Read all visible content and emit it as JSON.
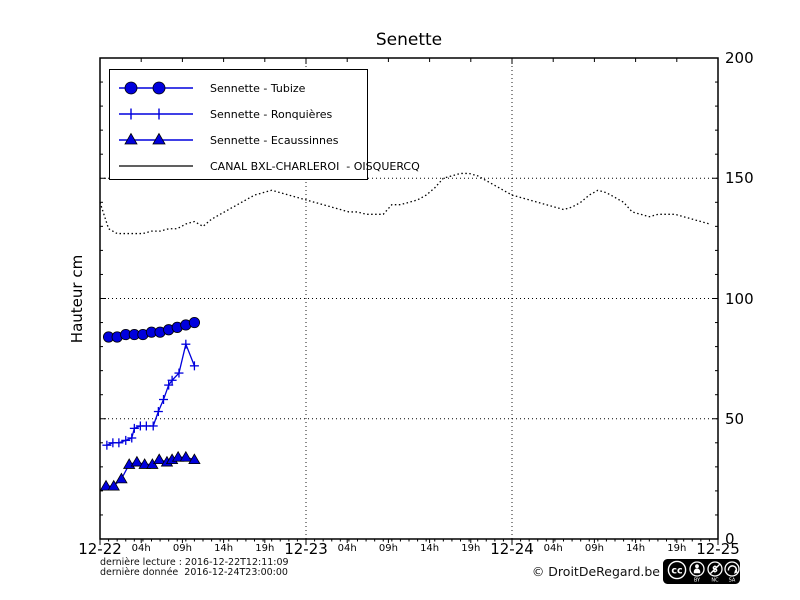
{
  "title": "Senette",
  "y_axis_label": "Hauteur cm",
  "footer": {
    "last_reading": "dernière lecture : 2016-12-22T12:11:09",
    "last_data": "dernière donnée  2016-12-24T23:00:00",
    "copyright": "© DroitDeRegard.be",
    "license": {
      "name": "CC BY-NC-SA",
      "parts": [
        "BY",
        "NC",
        "SA"
      ]
    }
  },
  "colors": {
    "series_blue": "#0000dd",
    "canal_black": "#000000",
    "grid": "#000000",
    "background": "#ffffff"
  },
  "chart_data": {
    "type": "line",
    "title": "Senette",
    "ylabel": "Hauteur cm",
    "x_unit": "hours since 2016-12-22 00:00",
    "xlim": [
      0,
      72
    ],
    "ylim": [
      0,
      200
    ],
    "yticks": [
      0,
      50,
      100,
      150,
      200
    ],
    "grid": "dotted",
    "legend_position": "upper left",
    "day_ticks": [
      {
        "h": 0,
        "label": "12-22"
      },
      {
        "h": 24,
        "label": "12-23"
      },
      {
        "h": 48,
        "label": "12-24"
      },
      {
        "h": 72,
        "label": "12-25"
      }
    ],
    "hour_ticks": [
      {
        "h": 4.8,
        "label": "04h"
      },
      {
        "h": 9.6,
        "label": "09h"
      },
      {
        "h": 14.4,
        "label": "14h"
      },
      {
        "h": 19.2,
        "label": "19h"
      },
      {
        "h": 28.8,
        "label": "04h"
      },
      {
        "h": 33.6,
        "label": "09h"
      },
      {
        "h": 38.4,
        "label": "14h"
      },
      {
        "h": 43.2,
        "label": "19h"
      },
      {
        "h": 52.8,
        "label": "04h"
      },
      {
        "h": 57.6,
        "label": "09h"
      },
      {
        "h": 62.4,
        "label": "14h"
      },
      {
        "h": 67.2,
        "label": "19h"
      }
    ],
    "series": [
      {
        "name": "Sennette - Tubize",
        "marker": "circle",
        "color": "#0000dd",
        "x": [
          1,
          2,
          3,
          4,
          5,
          6,
          7,
          8,
          9,
          10,
          11
        ],
        "y": [
          84,
          84,
          85,
          85,
          85,
          86,
          86,
          87,
          88,
          89,
          90
        ]
      },
      {
        "name": "Sennette - Ronquières",
        "marker": "plus",
        "color": "#0000dd",
        "x": [
          0.8,
          1.5,
          2.2,
          3,
          3.7,
          4,
          4.7,
          5.4,
          6.2,
          6.8,
          7.4,
          8,
          8.4,
          9.2,
          10,
          11
        ],
        "y": [
          39,
          40,
          40,
          41,
          42,
          46,
          47,
          47,
          47,
          53,
          58,
          64,
          66,
          69,
          81,
          72
        ]
      },
      {
        "name": "Sennette - Ecaussinnes",
        "marker": "triangle",
        "color": "#0000dd",
        "x": [
          0.7,
          1.6,
          2.5,
          3.4,
          4.3,
          5.2,
          6.1,
          6.9,
          7.8,
          8.4,
          9.1,
          10,
          11
        ],
        "y": [
          22,
          22,
          25,
          31,
          32,
          31,
          31,
          33,
          32,
          33,
          34,
          34,
          33
        ]
      },
      {
        "name": "CANAL BXL-CHARLEROI  - OISQUERCQ",
        "marker": "none",
        "linestyle": "dotted",
        "color": "#000000",
        "x": [
          0,
          1,
          2,
          3,
          4,
          5,
          6,
          7,
          8,
          9,
          10,
          11,
          12,
          13,
          14,
          15,
          16,
          17,
          18,
          19,
          20,
          21,
          22,
          23,
          24,
          25,
          26,
          27,
          28,
          29,
          30,
          31,
          32,
          33,
          34,
          35,
          36,
          37,
          38,
          39,
          40,
          41,
          42,
          43,
          44,
          45,
          46,
          47,
          48,
          49,
          50,
          51,
          52,
          53,
          54,
          55,
          56,
          57,
          58,
          59,
          60,
          61,
          62,
          63,
          64,
          65,
          66,
          67,
          68,
          69,
          70,
          71
        ],
        "y": [
          140,
          129,
          127,
          127,
          127,
          127,
          128,
          128,
          129,
          129,
          131,
          132,
          130,
          133,
          135,
          137,
          139,
          141,
          143,
          144,
          145,
          144,
          143,
          142,
          141,
          140,
          139,
          138,
          137,
          136,
          136,
          135,
          135,
          135,
          139,
          139,
          140,
          141,
          143,
          146,
          150,
          151,
          152,
          152,
          151,
          149,
          147,
          145,
          143,
          142,
          141,
          140,
          139,
          138,
          137,
          138,
          140,
          143,
          145,
          144,
          142,
          140,
          136,
          135,
          134,
          135,
          135,
          135,
          134,
          133,
          132,
          131
        ]
      }
    ]
  }
}
